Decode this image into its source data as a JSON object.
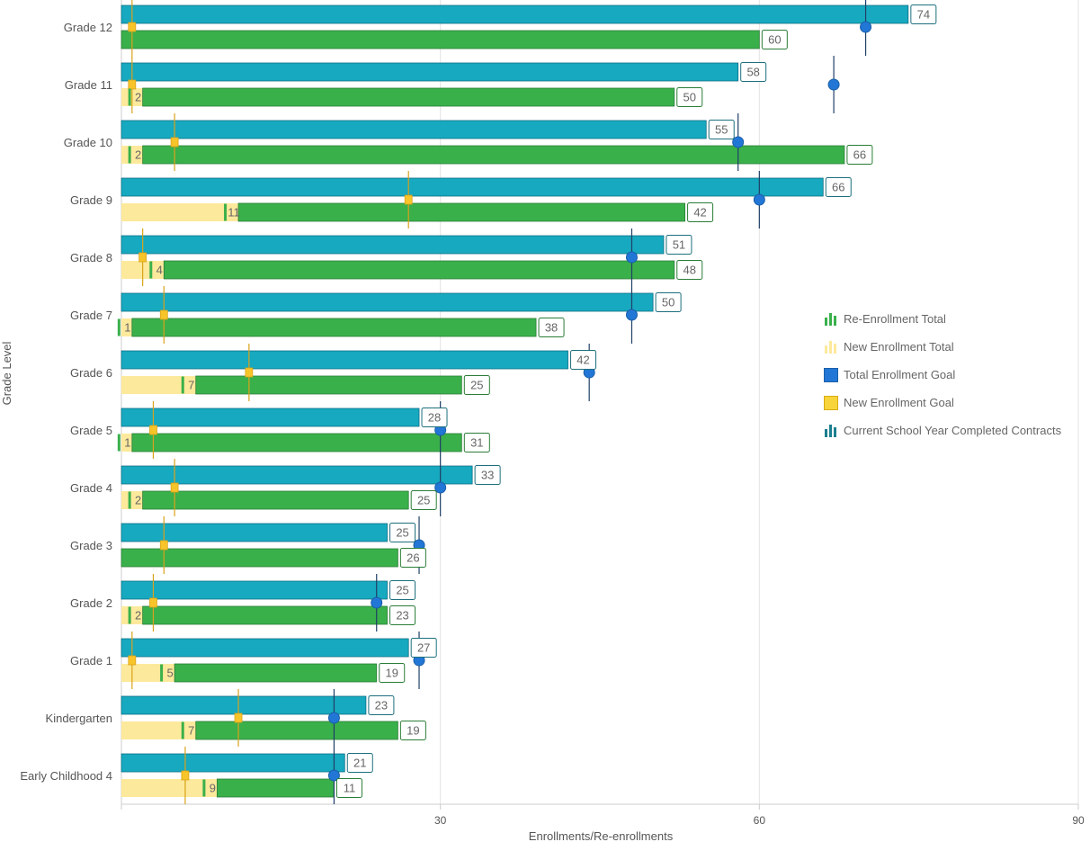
{
  "chart_data": {
    "type": "bar",
    "orientation": "horizontal",
    "xlabel": "Enrollments/Re-enrollments",
    "ylabel": "Grade Level",
    "xlim": [
      0,
      90
    ],
    "xticks": [
      30,
      60,
      90
    ],
    "grid": true,
    "legend_position": "right",
    "categories": [
      "Grade 12",
      "Grade 11",
      "Grade 10",
      "Grade 9",
      "Grade 8",
      "Grade 7",
      "Grade 6",
      "Grade 5",
      "Grade 4",
      "Grade 3",
      "Grade 2",
      "Grade 1",
      "Kindergarten",
      "Early Childhood 4"
    ],
    "series": [
      {
        "name": "Current School Year Completed Contracts",
        "color": "#17a9bf",
        "values": [
          74,
          58,
          55,
          66,
          51,
          50,
          42,
          28,
          33,
          25,
          25,
          27,
          23,
          21
        ]
      },
      {
        "name": "New Enrollment Total",
        "color": "#fde99b",
        "values": [
          0,
          2,
          2,
          11,
          4,
          1,
          7,
          1,
          2,
          0,
          2,
          5,
          7,
          9
        ]
      },
      {
        "name": "Re-Enrollment Total",
        "color": "#3ab04b",
        "values": [
          60,
          50,
          66,
          42,
          48,
          38,
          25,
          31,
          25,
          26,
          23,
          19,
          19,
          11
        ]
      },
      {
        "name": "Total Enrollment Goal",
        "color": "#2277d6",
        "values": [
          70,
          67,
          58,
          60,
          48,
          48,
          44,
          30,
          30,
          28,
          24,
          28,
          20,
          20
        ]
      },
      {
        "name": "New Enrollment Goal",
        "color": "#f7c52a",
        "values": [
          1,
          1,
          5,
          27,
          2,
          4,
          12,
          3,
          5,
          4,
          3,
          1,
          11,
          6
        ]
      }
    ],
    "legend": [
      "Re-Enrollment Total",
      "New Enrollment Total",
      "Total Enrollment Goal",
      "New Enrollment Goal",
      "Current School Year Completed Contracts"
    ]
  }
}
